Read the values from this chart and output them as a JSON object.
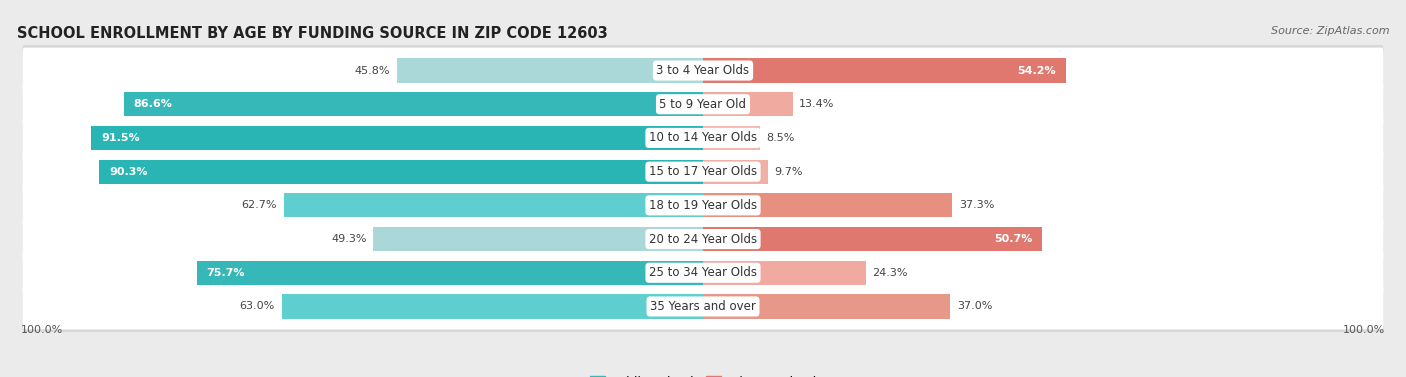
{
  "title": "SCHOOL ENROLLMENT BY AGE BY FUNDING SOURCE IN ZIP CODE 12603",
  "source": "Source: ZipAtlas.com",
  "categories": [
    "3 to 4 Year Olds",
    "5 to 9 Year Old",
    "10 to 14 Year Olds",
    "15 to 17 Year Olds",
    "18 to 19 Year Olds",
    "20 to 24 Year Olds",
    "25 to 34 Year Olds",
    "35 Years and over"
  ],
  "public_pct": [
    45.8,
    86.6,
    91.5,
    90.3,
    62.7,
    49.3,
    75.7,
    63.0
  ],
  "private_pct": [
    54.2,
    13.4,
    8.5,
    9.7,
    37.3,
    50.7,
    24.3,
    37.0
  ],
  "public_colors": [
    "#aad8d8",
    "#36b8b8",
    "#2ab5b5",
    "#2ab5b5",
    "#5ecece",
    "#aad8d8",
    "#36b8b8",
    "#5ecece"
  ],
  "private_colors": [
    "#e07870",
    "#f0aaa0",
    "#f5b8b0",
    "#f0b0a8",
    "#e89080",
    "#e07870",
    "#f0aaa0",
    "#e89888"
  ],
  "bg_color": "#ebebeb",
  "row_bg": "#f5f5f5",
  "row_border": "#e0e0e0",
  "title_fontsize": 10.5,
  "label_fontsize": 8.5,
  "pct_fontsize": 8.0,
  "source_fontsize": 8,
  "legend_fontsize": 9,
  "pub_label_white_threshold": 70,
  "priv_label_white_threshold": 40
}
